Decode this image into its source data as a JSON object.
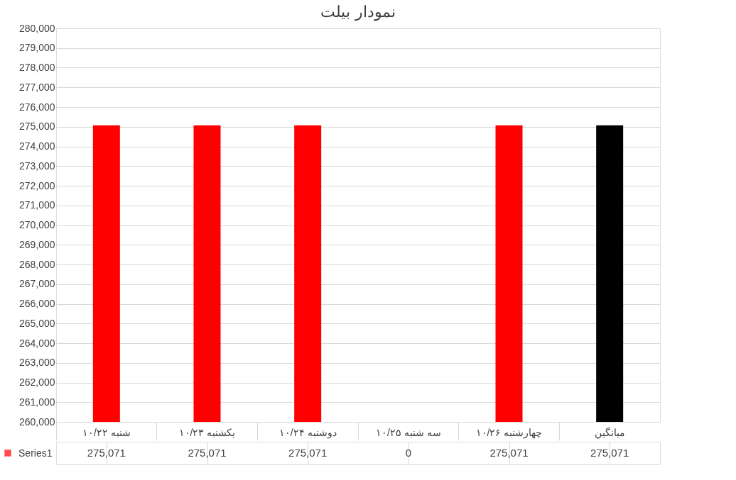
{
  "chart_data": {
    "type": "bar",
    "title": "نمودار بیلت",
    "categories": [
      "۱۰/۲۲ شنبه",
      "۱۰/۲۳ یکشنبه",
      "۱۰/۲۴ دوشنبه",
      "۱۰/۲۵ سه شنبه",
      "۱۰/۲۶ چهارشنبه",
      "میانگین"
    ],
    "series": [
      {
        "name": "Series1",
        "color": "#ff0000",
        "colors": [
          "#ff0000",
          "#ff0000",
          "#ff0000",
          "#ff0000",
          "#ff0000",
          "#000000"
        ],
        "values": [
          275071,
          275071,
          275071,
          null,
          275071,
          275071
        ],
        "value_labels": [
          "275,071",
          "275,071",
          "275,071",
          "0",
          "275,071",
          "275,071"
        ]
      }
    ],
    "ylim": [
      260000,
      280000
    ],
    "yticks": [
      {
        "value": 260000,
        "label": "260,000"
      },
      {
        "value": 261000,
        "label": "261,000"
      },
      {
        "value": 262000,
        "label": "262,000"
      },
      {
        "value": 263000,
        "label": "263,000"
      },
      {
        "value": 264000,
        "label": "264,000"
      },
      {
        "value": 265000,
        "label": "265,000"
      },
      {
        "value": 266000,
        "label": "266,000"
      },
      {
        "value": 267000,
        "label": "267,000"
      },
      {
        "value": 268000,
        "label": "268,000"
      },
      {
        "value": 269000,
        "label": "269,000"
      },
      {
        "value": 270000,
        "label": "270,000"
      },
      {
        "value": 271000,
        "label": "271,000"
      },
      {
        "value": 272000,
        "label": "272,000"
      },
      {
        "value": 273000,
        "label": "273,000"
      },
      {
        "value": 274000,
        "label": "274,000"
      },
      {
        "value": 275000,
        "label": "275,000"
      },
      {
        "value": 276000,
        "label": "276,000"
      },
      {
        "value": 277000,
        "label": "277,000"
      },
      {
        "value": 278000,
        "label": "278,000"
      },
      {
        "value": 279000,
        "label": "279,000"
      },
      {
        "value": 280000,
        "label": "280,000"
      }
    ],
    "grid": "y",
    "legend": "bottom"
  }
}
